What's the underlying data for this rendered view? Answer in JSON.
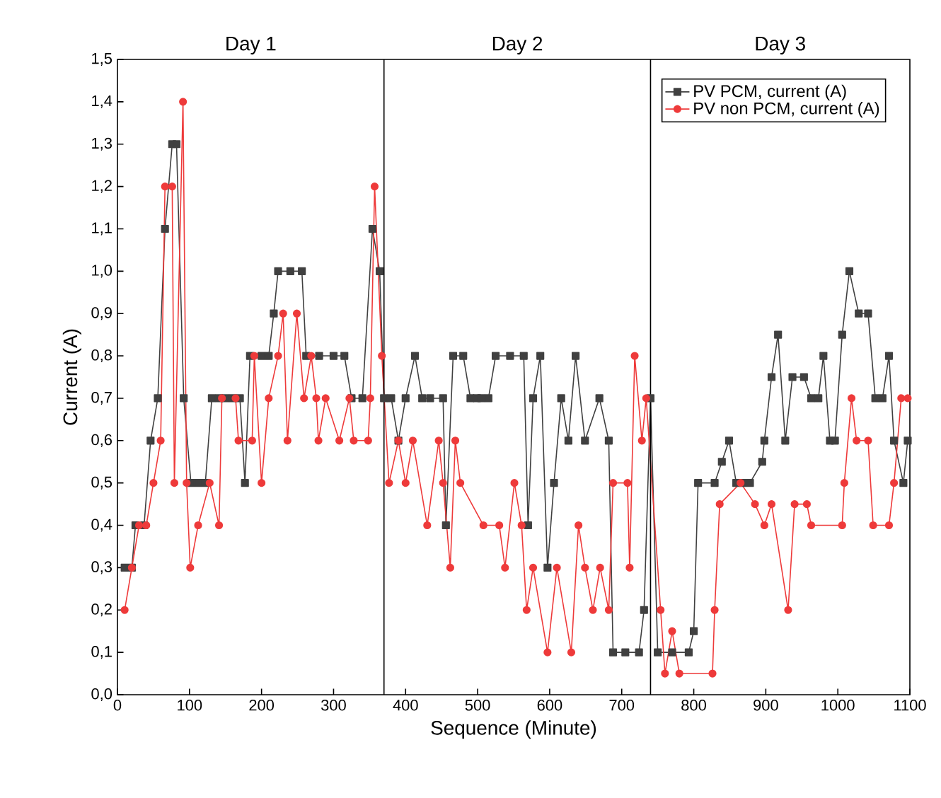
{
  "chart_data": {
    "type": "line",
    "xlabel": "Sequence (Minute)",
    "ylabel": "Current (A)",
    "annotations": [
      "Day 1",
      "Day 2",
      "Day 3"
    ],
    "ref_lines": [
      {
        "axis": "x",
        "value": 370,
        "color": "#000000"
      },
      {
        "axis": "x",
        "value": 740,
        "color": "#000000"
      }
    ],
    "xlim": [
      0,
      1100
    ],
    "ylim": [
      0,
      1.5
    ],
    "xticks": [
      0,
      100,
      200,
      300,
      400,
      500,
      600,
      700,
      800,
      900,
      1000,
      1100
    ],
    "yticks": [
      {
        "value": 0,
        "label": "0,0"
      },
      {
        "value": 0.1,
        "label": "0,1"
      },
      {
        "value": 0.2,
        "label": "0,2"
      },
      {
        "value": 0.3,
        "label": "0,3"
      },
      {
        "value": 0.4,
        "label": "0,4"
      },
      {
        "value": 0.5,
        "label": "0,5"
      },
      {
        "value": 0.6,
        "label": "0,6"
      },
      {
        "value": 0.7,
        "label": "0,7"
      },
      {
        "value": 0.8,
        "label": "0,8"
      },
      {
        "value": 0.9,
        "label": "0,9"
      },
      {
        "value": 1.0,
        "label": "1,0"
      },
      {
        "value": 1.1,
        "label": "1,1"
      },
      {
        "value": 1.2,
        "label": "1,2"
      },
      {
        "value": 1.3,
        "label": "1,3"
      },
      {
        "value": 1.4,
        "label": "1,4"
      },
      {
        "value": 1.5,
        "label": "1,5"
      }
    ],
    "legend": "top right",
    "grid": false,
    "series": [
      {
        "name": "PV PCM, current (A)",
        "color": "#404040",
        "marker": "square",
        "x": [
          10,
          20,
          25,
          37,
          46,
          56,
          66,
          76,
          82,
          92,
          102,
          112,
          122,
          131,
          141,
          150,
          160,
          170,
          177,
          184,
          200,
          210,
          217,
          223,
          240,
          256,
          262,
          280,
          300,
          315,
          325,
          340,
          354,
          364,
          370,
          380,
          390,
          400,
          413,
          423,
          434,
          452,
          456,
          466,
          480,
          490,
          499,
          505,
          515,
          525,
          545,
          564,
          570,
          577,
          587,
          597,
          606,
          616,
          626,
          636,
          649,
          669,
          682,
          688,
          705,
          724,
          731,
          740,
          750,
          770,
          793,
          800,
          806,
          829,
          839,
          849,
          859,
          868,
          878,
          895,
          898,
          908,
          917,
          927,
          937,
          953,
          963,
          973,
          980,
          989,
          996,
          1006,
          1016,
          1029,
          1042,
          1052,
          1062,
          1071,
          1078,
          1091,
          1097
        ],
        "values": [
          0.3,
          0.3,
          0.4,
          0.4,
          0.6,
          0.7,
          1.1,
          1.3,
          1.3,
          0.7,
          0.5,
          0.5,
          0.5,
          0.7,
          0.7,
          0.7,
          0.7,
          0.7,
          0.5,
          0.8,
          0.8,
          0.8,
          0.9,
          1.0,
          1.0,
          1.0,
          0.8,
          0.8,
          0.8,
          0.8,
          0.7,
          0.7,
          1.1,
          1.0,
          0.7,
          0.7,
          0.6,
          0.7,
          0.8,
          0.7,
          0.7,
          0.7,
          0.4,
          0.8,
          0.8,
          0.7,
          0.7,
          0.7,
          0.7,
          0.8,
          0.8,
          0.8,
          0.4,
          0.7,
          0.8,
          0.3,
          0.5,
          0.7,
          0.6,
          0.8,
          0.6,
          0.7,
          0.6,
          0.1,
          0.1,
          0.1,
          0.2,
          0.7,
          0.1,
          0.1,
          0.1,
          0.15,
          0.5,
          0.5,
          0.55,
          0.6,
          0.5,
          0.5,
          0.5,
          0.55,
          0.6,
          0.75,
          0.85,
          0.6,
          0.75,
          0.75,
          0.7,
          0.7,
          0.8,
          0.6,
          0.6,
          0.85,
          1.0,
          0.9,
          0.9,
          0.7,
          0.7,
          0.8,
          0.6,
          0.5,
          0.6
        ]
      },
      {
        "name": "PV non PCM, current (A)",
        "color": "#ee3a3a",
        "marker": "circle",
        "x": [
          10,
          20,
          30,
          40,
          50,
          60,
          66,
          76,
          79,
          91,
          96,
          101,
          112,
          128,
          141,
          145,
          164,
          168,
          187,
          190,
          200,
          210,
          223,
          230,
          236,
          249,
          259,
          269,
          276,
          279,
          289,
          308,
          322,
          328,
          348,
          351,
          357,
          367,
          377,
          390,
          400,
          410,
          430,
          446,
          452,
          462,
          469,
          476,
          508,
          530,
          538,
          551,
          561,
          568,
          577,
          597,
          610,
          630,
          640,
          649,
          660,
          670,
          682,
          688,
          708,
          711,
          718,
          728,
          734,
          754,
          760,
          770,
          780,
          826,
          829,
          836,
          865,
          885,
          898,
          908,
          931,
          940,
          957,
          963,
          1006,
          1009,
          1019,
          1026,
          1042,
          1049,
          1071,
          1078,
          1088,
          1097
        ],
        "values": [
          0.2,
          0.3,
          0.4,
          0.4,
          0.5,
          0.6,
          1.2,
          1.2,
          0.5,
          1.4,
          0.5,
          0.3,
          0.4,
          0.5,
          0.4,
          0.7,
          0.7,
          0.6,
          0.6,
          0.8,
          0.5,
          0.7,
          0.8,
          0.9,
          0.6,
          0.9,
          0.7,
          0.8,
          0.7,
          0.6,
          0.7,
          0.6,
          0.7,
          0.6,
          0.6,
          0.7,
          1.2,
          0.8,
          0.5,
          0.6,
          0.5,
          0.6,
          0.4,
          0.6,
          0.5,
          0.3,
          0.6,
          0.5,
          0.4,
          0.4,
          0.3,
          0.5,
          0.4,
          0.2,
          0.3,
          0.1,
          0.3,
          0.1,
          0.4,
          0.3,
          0.2,
          0.3,
          0.2,
          0.5,
          0.5,
          0.3,
          0.8,
          0.6,
          0.7,
          0.2,
          0.05,
          0.15,
          0.05,
          0.05,
          0.2,
          0.45,
          0.5,
          0.45,
          0.4,
          0.45,
          0.2,
          0.45,
          0.45,
          0.4,
          0.4,
          0.5,
          0.7,
          0.6,
          0.6,
          0.4,
          0.4,
          0.5,
          0.7,
          0.7
        ]
      }
    ]
  }
}
